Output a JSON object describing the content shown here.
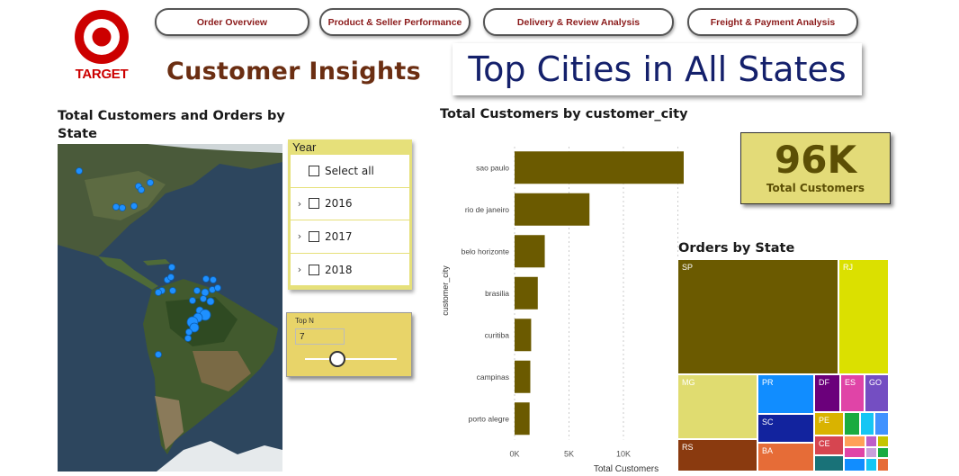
{
  "brand": {
    "logo_text": "TARGET",
    "color": "#cc0000"
  },
  "nav": {
    "items": [
      "Order Overview",
      "Product & Seller Performance",
      "Delivery & Review Analysis",
      "Freight & Payment Analysis"
    ]
  },
  "page_title": "Customer Insights",
  "card_title": "Top Cities in All States",
  "map_section": {
    "title": "Total Customers and Orders by State"
  },
  "year_slicer": {
    "title": "Year",
    "select_all": "Select all",
    "years": [
      "2016",
      "2017",
      "2018"
    ]
  },
  "topn": {
    "label": "Top N",
    "value": "7",
    "slider_fraction": 0.35
  },
  "bar_section": {
    "title": "Total Customers by customer_city"
  },
  "chart_data": {
    "type": "bar",
    "orientation": "horizontal",
    "categories": [
      "sao paulo",
      "rio de janeiro",
      "belo horizonte",
      "brasilia",
      "curitiba",
      "campinas",
      "porto alegre"
    ],
    "values": [
      15540,
      6882,
      2773,
      2131,
      1521,
      1444,
      1379
    ],
    "xlabel": "Total Customers",
    "ylabel": "customer_city",
    "xlim": [
      0,
      15540
    ],
    "xticks": [
      "0K",
      "5K",
      "10K"
    ],
    "color": "#6b5a00",
    "grid": true
  },
  "kpi": {
    "value": "96K",
    "label": "Total Customers"
  },
  "treemap_section": {
    "title": "Orders by State",
    "tiles": [
      {
        "label": "SP",
        "color": "#6b5a00"
      },
      {
        "label": "RJ",
        "color": "#dbe000"
      },
      {
        "label": "MG",
        "color": "#e0dc70"
      },
      {
        "label": "PR",
        "color": "#118dff"
      },
      {
        "label": "DF",
        "color": "#6b007b"
      },
      {
        "label": "ES",
        "color": "#e044a7"
      },
      {
        "label": "GO",
        "color": "#744ec2"
      },
      {
        "label": "SC",
        "color": "#12239e"
      },
      {
        "label": "PE",
        "color": "#d9b300"
      },
      {
        "label": "RS",
        "color": "#8a3a0f"
      },
      {
        "label": "BA",
        "color": "#e66c37"
      },
      {
        "label": "CE",
        "color": "#d64550"
      }
    ]
  }
}
